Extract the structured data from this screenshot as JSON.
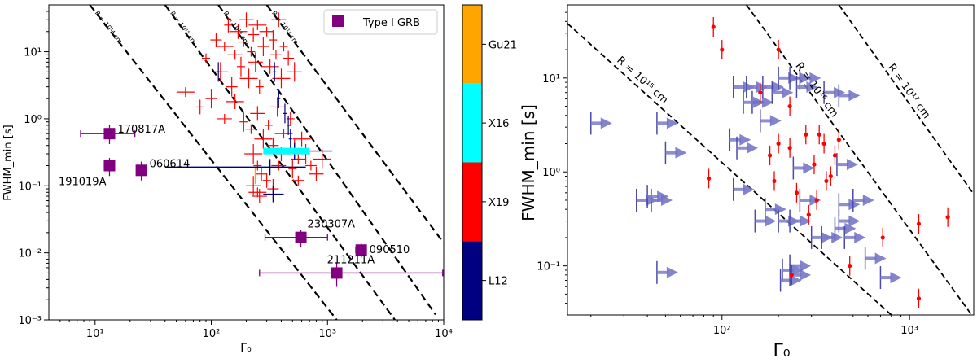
{
  "chart_data": [
    {
      "type": "scatter",
      "panel": "left",
      "xscale": "log",
      "yscale": "log",
      "xlim": [
        4,
        10000
      ],
      "ylim": [
        0.001,
        50
      ],
      "xlabel": "Γ₀",
      "ylabel": "FWHM_min [s]",
      "xticks": [
        {
          "v": 10,
          "label": "10¹"
        },
        {
          "v": 100,
          "label": "10²"
        },
        {
          "v": 1000,
          "label": "10³"
        },
        {
          "v": 10000,
          "label": "10⁴"
        }
      ],
      "yticks": [
        {
          "v": 0.001,
          "label": "10⁻³"
        },
        {
          "v": 0.01,
          "label": "10⁻²"
        },
        {
          "v": 0.1,
          "label": "10⁻¹"
        },
        {
          "v": 1,
          "label": "10⁰"
        },
        {
          "v": 10,
          "label": "10¹"
        }
      ],
      "legend": {
        "label": "Type I GRB",
        "color": "#800080",
        "placement": "top-right"
      },
      "radius_lines": [
        {
          "R": 100000000000000.0,
          "label": "R = 10¹⁴ cm",
          "x0": 9,
          "y0": 50,
          "x1": 1200,
          "y1": 0.001
        },
        {
          "R": 1000000000000000.0,
          "label": "R = 10¹⁵ cm",
          "x0": 40,
          "y0": 50,
          "x1": 3800,
          "y1": 0.001
        },
        {
          "R": 1e+16,
          "label": "R = 10¹⁶ cm",
          "x0": 115,
          "y0": 50,
          "x1": 8500,
          "y1": 0.0012
        },
        {
          "R": 1e+17,
          "label": "R = 10¹⁷ cm",
          "x0": 300,
          "y0": 50,
          "x1": 10000,
          "y1": 0.014
        }
      ],
      "colorbar": {
        "categories": [
          {
            "label": "L12",
            "color": "#000080"
          },
          {
            "label": "X19",
            "color": "#ff0000"
          },
          {
            "label": "X16",
            "color": "#00ffff"
          },
          {
            "label": "Gu21",
            "color": "#ffa500"
          }
        ]
      },
      "type1_grbs": [
        {
          "name": "170817A",
          "x": 13.3,
          "y": 0.6,
          "xerr": [
            7.5,
            22
          ],
          "yerr": [
            0.42,
            0.82
          ]
        },
        {
          "name": "060614",
          "x": 25,
          "y": 0.17,
          "xerr": [
            23,
            27
          ],
          "yerr": [
            0.12,
            0.23
          ]
        },
        {
          "name": "191019A",
          "x": 13.3,
          "y": 0.2,
          "xerr": [
            12,
            14.5
          ],
          "yerr": [
            0.14,
            0.26
          ]
        },
        {
          "name": "230307A",
          "x": 590,
          "y": 0.017,
          "xerr": [
            290,
            1000
          ],
          "yerr": [
            0.012,
            0.022
          ]
        },
        {
          "name": "090510",
          "x": 1950,
          "y": 0.011,
          "xerr": [
            1750,
            2150
          ],
          "yerr": [
            0.0085,
            0.014
          ]
        },
        {
          "name": "211211A",
          "x": 1200,
          "y": 0.005,
          "xerr": [
            260,
            9800
          ],
          "yerr": [
            0.0031,
            0.0072
          ]
        }
      ],
      "red_points": [
        {
          "x": 90,
          "y": 8
        },
        {
          "x": 110,
          "y": 15
        },
        {
          "x": 120,
          "y": 5
        },
        {
          "x": 130,
          "y": 12
        },
        {
          "x": 140,
          "y": 25
        },
        {
          "x": 150,
          "y": 3
        },
        {
          "x": 160,
          "y": 9
        },
        {
          "x": 170,
          "y": 20
        },
        {
          "x": 180,
          "y": 6
        },
        {
          "x": 190,
          "y": 14
        },
        {
          "x": 200,
          "y": 30
        },
        {
          "x": 210,
          "y": 4
        },
        {
          "x": 220,
          "y": 10
        },
        {
          "x": 230,
          "y": 18
        },
        {
          "x": 240,
          "y": 7
        },
        {
          "x": 250,
          "y": 25
        },
        {
          "x": 260,
          "y": 3
        },
        {
          "x": 280,
          "y": 12
        },
        {
          "x": 300,
          "y": 20
        },
        {
          "x": 320,
          "y": 6
        },
        {
          "x": 340,
          "y": 15
        },
        {
          "x": 360,
          "y": 9
        },
        {
          "x": 380,
          "y": 30
        },
        {
          "x": 400,
          "y": 4
        },
        {
          "x": 420,
          "y": 12
        },
        {
          "x": 460,
          "y": 8
        },
        {
          "x": 520,
          "y": 5
        },
        {
          "x": 60,
          "y": 2.5
        },
        {
          "x": 80,
          "y": 1.5
        },
        {
          "x": 100,
          "y": 2
        },
        {
          "x": 130,
          "y": 1
        },
        {
          "x": 160,
          "y": 1.8
        },
        {
          "x": 190,
          "y": 0.9
        },
        {
          "x": 220,
          "y": 0.7
        },
        {
          "x": 250,
          "y": 1.2
        },
        {
          "x": 280,
          "y": 0.5
        },
        {
          "x": 310,
          "y": 0.8
        },
        {
          "x": 340,
          "y": 0.4
        },
        {
          "x": 370,
          "y": 1.5
        },
        {
          "x": 420,
          "y": 0.6
        },
        {
          "x": 480,
          "y": 1
        },
        {
          "x": 520,
          "y": 0.35
        },
        {
          "x": 560,
          "y": 0.25
        },
        {
          "x": 600,
          "y": 0.5
        },
        {
          "x": 650,
          "y": 0.3
        },
        {
          "x": 720,
          "y": 0.2
        },
        {
          "x": 800,
          "y": 0.15
        },
        {
          "x": 230,
          "y": 0.3
        },
        {
          "x": 250,
          "y": 0.2
        },
        {
          "x": 270,
          "y": 0.15
        },
        {
          "x": 230,
          "y": 0.1
        },
        {
          "x": 250,
          "y": 0.08
        },
        {
          "x": 300,
          "y": 0.12
        },
        {
          "x": 340,
          "y": 0.09
        },
        {
          "x": 380,
          "y": 0.2
        },
        {
          "x": 400,
          "y": 0.3
        },
        {
          "x": 500,
          "y": 0.18
        },
        {
          "x": 560,
          "y": 0.12
        },
        {
          "x": 260,
          "y": 0.07
        },
        {
          "x": 900,
          "y": 0.25
        }
      ],
      "navy_points": [
        {
          "x": 115,
          "y": 5
        },
        {
          "x": 350,
          "y": 5
        },
        {
          "x": 380,
          "y": 2
        },
        {
          "x": 430,
          "y": 1.2
        },
        {
          "x": 460,
          "y": 0.8
        },
        {
          "x": 520,
          "y": 0.33,
          "xerr": [
            290,
            1100
          ]
        },
        {
          "x": 320,
          "y": 0.19,
          "xerr": [
            40,
            650
          ]
        },
        {
          "x": 340,
          "y": 0.075,
          "xerr": [
            280,
            420
          ]
        },
        {
          "x": 480,
          "y": 0.5
        }
      ],
      "cyan_points": [
        {
          "x": 480,
          "y": 0.33,
          "xerr": [
            280,
            700
          ]
        }
      ],
      "orange_points": [
        {
          "x": 240,
          "y": 0.14
        }
      ]
    },
    {
      "type": "scatter",
      "panel": "right",
      "xscale": "log",
      "yscale": "log",
      "xlim": [
        15,
        2200
      ],
      "ylim": [
        0.03,
        60
      ],
      "xlabel": "Γ₀",
      "ylabel": "FWHM_min [s]",
      "xticks": [
        {
          "v": 100,
          "label": "10²"
        },
        {
          "v": 1000,
          "label": "10³"
        }
      ],
      "yticks": [
        {
          "v": 0.1,
          "label": "10⁻¹"
        },
        {
          "v": 1,
          "label": "10⁰"
        },
        {
          "v": 10,
          "label": "10¹"
        }
      ],
      "radius_lines": [
        {
          "R": 1000000000000000.0,
          "label": "R = 10¹⁵ cm",
          "x0": 15,
          "y0": 38,
          "x1": 800,
          "y1": 0.03
        },
        {
          "R": 1e+16,
          "label": "R = 10¹⁶ cm",
          "x0": 135,
          "y0": 60,
          "x1": 2200,
          "y1": 0.028
        },
        {
          "R": 1e+17,
          "label": "R = 10¹⁷ cm",
          "x0": 420,
          "y0": 60,
          "x1": 2200,
          "y1": 0.58
        }
      ],
      "red_points": [
        {
          "x": 90,
          "y": 35
        },
        {
          "x": 100,
          "y": 20
        },
        {
          "x": 200,
          "y": 20
        },
        {
          "x": 160,
          "y": 7
        },
        {
          "x": 230,
          "y": 5
        },
        {
          "x": 200,
          "y": 2
        },
        {
          "x": 230,
          "y": 1.8
        },
        {
          "x": 280,
          "y": 2.5
        },
        {
          "x": 310,
          "y": 1.2
        },
        {
          "x": 330,
          "y": 2.5
        },
        {
          "x": 350,
          "y": 2
        },
        {
          "x": 420,
          "y": 2.2
        },
        {
          "x": 360,
          "y": 0.8
        },
        {
          "x": 320,
          "y": 0.5
        },
        {
          "x": 380,
          "y": 0.9
        },
        {
          "x": 250,
          "y": 0.6
        },
        {
          "x": 290,
          "y": 0.35
        },
        {
          "x": 190,
          "y": 0.8
        },
        {
          "x": 85,
          "y": 0.85
        },
        {
          "x": 235,
          "y": 0.08
        },
        {
          "x": 480,
          "y": 0.1
        },
        {
          "x": 720,
          "y": 0.2
        },
        {
          "x": 1120,
          "y": 0.28
        },
        {
          "x": 1600,
          "y": 0.33
        },
        {
          "x": 1120,
          "y": 0.045
        },
        {
          "x": 400,
          "y": 1.5
        },
        {
          "x": 180,
          "y": 1.5
        }
      ],
      "upper_limits": [
        {
          "x": 20,
          "y": 3.3
        },
        {
          "x": 45,
          "y": 3.3
        },
        {
          "x": 50,
          "y": 1.6
        },
        {
          "x": 35,
          "y": 0.5
        },
        {
          "x": 42,
          "y": 0.5
        },
        {
          "x": 40,
          "y": 0.55
        },
        {
          "x": 45,
          "y": 0.085
        },
        {
          "x": 115,
          "y": 8
        },
        {
          "x": 135,
          "y": 8
        },
        {
          "x": 145,
          "y": 5.5
        },
        {
          "x": 130,
          "y": 5.5
        },
        {
          "x": 160,
          "y": 3.5
        },
        {
          "x": 165,
          "y": 8
        },
        {
          "x": 185,
          "y": 7
        },
        {
          "x": 200,
          "y": 10
        },
        {
          "x": 230,
          "y": 10
        },
        {
          "x": 260,
          "y": 10
        },
        {
          "x": 250,
          "y": 8
        },
        {
          "x": 350,
          "y": 7
        },
        {
          "x": 420,
          "y": 6.5
        },
        {
          "x": 110,
          "y": 2.2
        },
        {
          "x": 120,
          "y": 1.8
        },
        {
          "x": 115,
          "y": 0.65
        },
        {
          "x": 170,
          "y": 0.4
        },
        {
          "x": 150,
          "y": 0.3
        },
        {
          "x": 200,
          "y": 0.3
        },
        {
          "x": 230,
          "y": 0.3
        },
        {
          "x": 260,
          "y": 0.5
        },
        {
          "x": 240,
          "y": 1.1
        },
        {
          "x": 420,
          "y": 0.45
        },
        {
          "x": 500,
          "y": 0.5
        },
        {
          "x": 420,
          "y": 0.3
        },
        {
          "x": 300,
          "y": 0.2
        },
        {
          "x": 340,
          "y": 0.2
        },
        {
          "x": 400,
          "y": 0.25
        },
        {
          "x": 450,
          "y": 0.2
        },
        {
          "x": 210,
          "y": 0.09
        },
        {
          "x": 230,
          "y": 0.1
        },
        {
          "x": 205,
          "y": 0.07
        },
        {
          "x": 230,
          "y": 0.08
        },
        {
          "x": 580,
          "y": 0.12
        },
        {
          "x": 700,
          "y": 0.075
        },
        {
          "x": 410,
          "y": 1.2
        }
      ]
    }
  ]
}
